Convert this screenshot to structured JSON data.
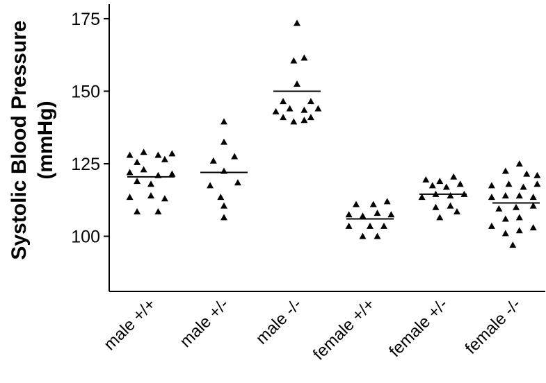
{
  "chart_data": {
    "type": "scatter",
    "title": "",
    "xlabel": "",
    "ylabel_lines": [
      "Systolic Blood Pressure",
      "(mmHg)"
    ],
    "ylim": [
      81,
      180
    ],
    "yticks": [
      100,
      125,
      150,
      175
    ],
    "grid": false,
    "categories": [
      "male +/+",
      "male +/-",
      "male -/-",
      "female +/+",
      "female +/-",
      "female -/-"
    ],
    "series": [
      {
        "category": "male +/+",
        "mean": 120.5,
        "points": [
          {
            "offset": -0.32,
            "y": 128.0
          },
          {
            "offset": -0.11,
            "y": 129.0
          },
          {
            "offset": 0.11,
            "y": 128.0
          },
          {
            "offset": 0.32,
            "y": 128.5
          },
          {
            "offset": -0.21,
            "y": 125.5
          },
          {
            "offset": 0.21,
            "y": 126.5
          },
          {
            "offset": -0.32,
            "y": 122.0
          },
          {
            "offset": -0.11,
            "y": 123.0
          },
          {
            "offset": 0.11,
            "y": 121.0
          },
          {
            "offset": 0.32,
            "y": 121.5
          },
          {
            "offset": -0.21,
            "y": 119.0
          },
          {
            "offset": 0.0,
            "y": 118.0
          },
          {
            "offset": -0.32,
            "y": 113.5
          },
          {
            "offset": 0.0,
            "y": 114.0
          },
          {
            "offset": 0.21,
            "y": 113.0
          },
          {
            "offset": -0.21,
            "y": 108.5
          },
          {
            "offset": 0.11,
            "y": 108.5
          }
        ]
      },
      {
        "category": "male +/-",
        "mean": 122.0,
        "points": [
          {
            "offset": 0.0,
            "y": 139.5
          },
          {
            "offset": 0.0,
            "y": 132.5
          },
          {
            "offset": -0.16,
            "y": 126.0
          },
          {
            "offset": 0.16,
            "y": 127.5
          },
          {
            "offset": 0.0,
            "y": 122.5
          },
          {
            "offset": -0.21,
            "y": 117.5
          },
          {
            "offset": 0.21,
            "y": 118.5
          },
          {
            "offset": -0.05,
            "y": 113.5
          },
          {
            "offset": 0.0,
            "y": 110.5
          },
          {
            "offset": 0.0,
            "y": 106.5
          }
        ]
      },
      {
        "category": "male -/-",
        "mean": 150.0,
        "points": [
          {
            "offset": 0.0,
            "y": 173.5
          },
          {
            "offset": -0.05,
            "y": 160.5
          },
          {
            "offset": 0.11,
            "y": 161.5
          },
          {
            "offset": 0.0,
            "y": 152.5
          },
          {
            "offset": -0.21,
            "y": 146.5
          },
          {
            "offset": 0.21,
            "y": 146.5
          },
          {
            "offset": -0.32,
            "y": 143.0
          },
          {
            "offset": -0.11,
            "y": 144.0
          },
          {
            "offset": 0.11,
            "y": 143.5
          },
          {
            "offset": 0.32,
            "y": 144.0
          },
          {
            "offset": -0.21,
            "y": 141.0
          },
          {
            "offset": 0.21,
            "y": 141.0
          },
          {
            "offset": -0.05,
            "y": 139.5
          },
          {
            "offset": 0.11,
            "y": 140.0
          }
        ]
      },
      {
        "category": "female +/+",
        "mean": 106.0,
        "points": [
          {
            "offset": -0.21,
            "y": 111.0
          },
          {
            "offset": 0.05,
            "y": 111.0
          },
          {
            "offset": 0.26,
            "y": 112.0
          },
          {
            "offset": -0.32,
            "y": 107.5
          },
          {
            "offset": -0.11,
            "y": 107.0
          },
          {
            "offset": 0.11,
            "y": 108.0
          },
          {
            "offset": 0.32,
            "y": 107.5
          },
          {
            "offset": -0.32,
            "y": 103.5
          },
          {
            "offset": 0.0,
            "y": 103.5
          },
          {
            "offset": 0.21,
            "y": 103.5
          },
          {
            "offset": -0.11,
            "y": 100.0
          },
          {
            "offset": 0.11,
            "y": 100.0
          }
        ]
      },
      {
        "category": "female +/-",
        "mean": 114.5,
        "points": [
          {
            "offset": -0.26,
            "y": 119.5
          },
          {
            "offset": -0.05,
            "y": 119.0
          },
          {
            "offset": 0.16,
            "y": 120.5
          },
          {
            "offset": -0.16,
            "y": 117.5
          },
          {
            "offset": 0.05,
            "y": 117.0
          },
          {
            "offset": 0.26,
            "y": 118.0
          },
          {
            "offset": -0.32,
            "y": 113.5
          },
          {
            "offset": -0.11,
            "y": 114.5
          },
          {
            "offset": 0.11,
            "y": 114.0
          },
          {
            "offset": 0.32,
            "y": 114.5
          },
          {
            "offset": -0.11,
            "y": 110.0
          },
          {
            "offset": 0.11,
            "y": 110.5
          },
          {
            "offset": -0.05,
            "y": 106.5
          },
          {
            "offset": 0.21,
            "y": 108.5
          }
        ]
      },
      {
        "category": "female -/-",
        "mean": 111.5,
        "points": [
          {
            "offset": 0.05,
            "y": 125.0
          },
          {
            "offset": -0.16,
            "y": 122.5
          },
          {
            "offset": 0.16,
            "y": 121.5
          },
          {
            "offset": 0.32,
            "y": 121.0
          },
          {
            "offset": -0.37,
            "y": 117.5
          },
          {
            "offset": -0.11,
            "y": 118.0
          },
          {
            "offset": 0.11,
            "y": 117.0
          },
          {
            "offset": 0.32,
            "y": 118.0
          },
          {
            "offset": -0.37,
            "y": 113.5
          },
          {
            "offset": -0.16,
            "y": 114.0
          },
          {
            "offset": 0.05,
            "y": 114.0
          },
          {
            "offset": 0.26,
            "y": 113.5
          },
          {
            "offset": -0.26,
            "y": 109.5
          },
          {
            "offset": 0.0,
            "y": 110.0
          },
          {
            "offset": 0.26,
            "y": 110.5
          },
          {
            "offset": -0.37,
            "y": 103.5
          },
          {
            "offset": -0.16,
            "y": 106.0
          },
          {
            "offset": 0.05,
            "y": 106.5
          },
          {
            "offset": 0.26,
            "y": 103.0
          },
          {
            "offset": -0.16,
            "y": 101.0
          },
          {
            "offset": 0.05,
            "y": 102.0
          },
          {
            "offset": -0.05,
            "y": 97.0
          }
        ]
      }
    ]
  }
}
